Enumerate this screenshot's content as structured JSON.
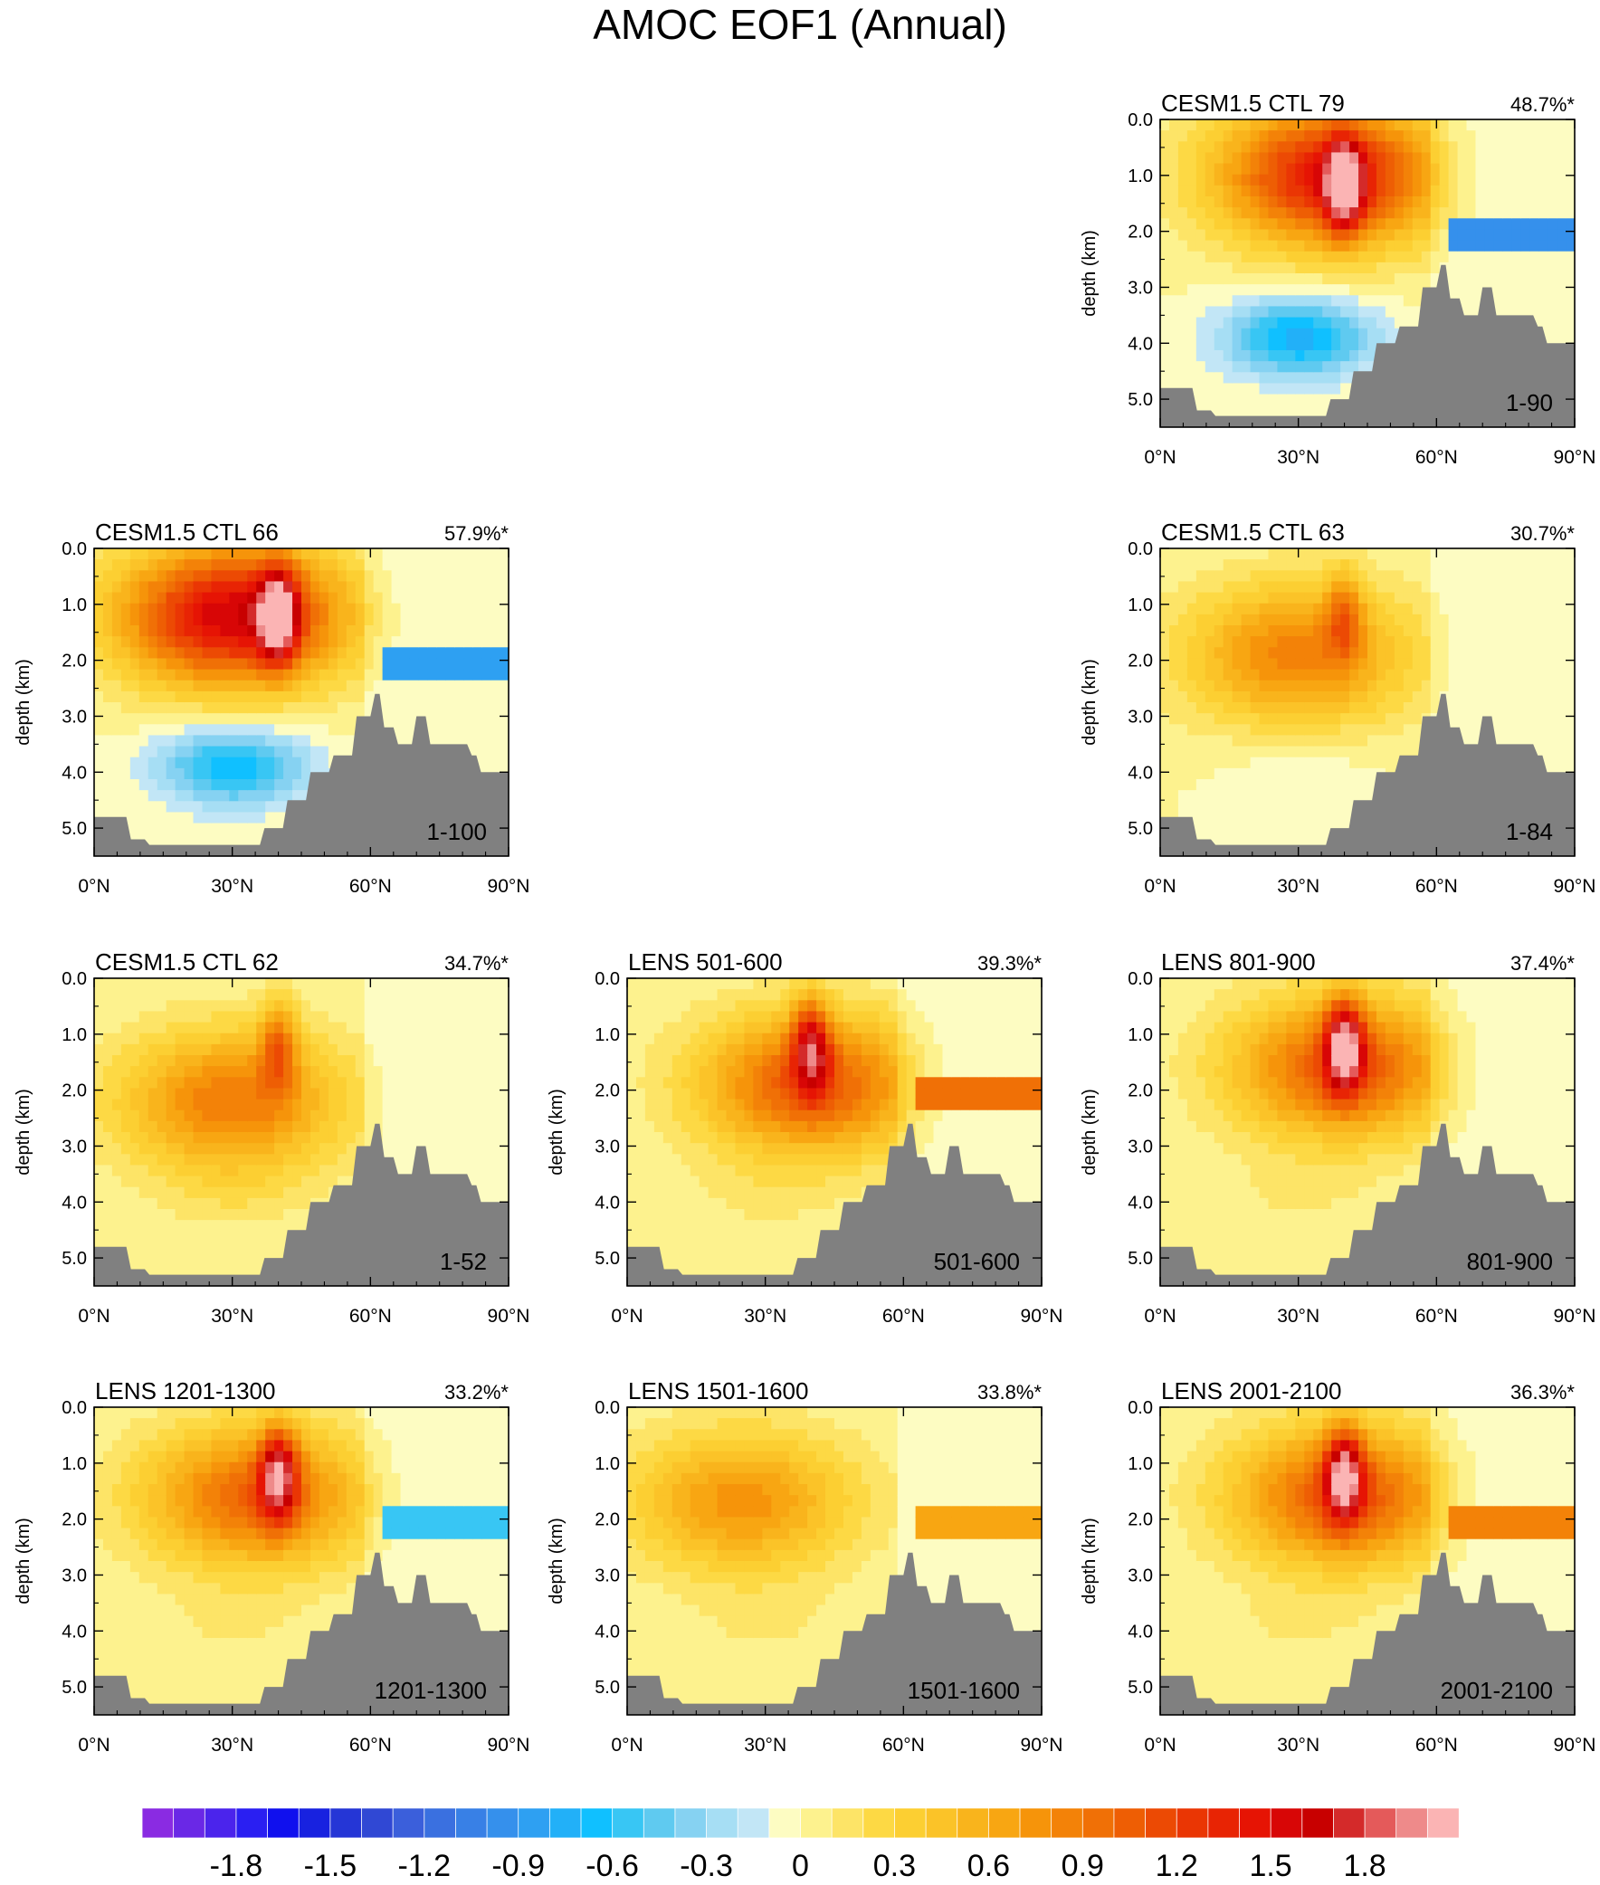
{
  "chart_data": {
    "type": "heatmap",
    "title": "AMOC EOF1 (Annual)",
    "ylabel": "depth (km)",
    "x_ticks": [
      "0°N",
      "30°N",
      "60°N",
      "90°N"
    ],
    "y_ticks": [
      "0.0",
      "1.0",
      "2.0",
      "3.0",
      "4.0",
      "5.0"
    ],
    "xlim": [
      0,
      90
    ],
    "ylim": [
      5.5,
      0
    ],
    "panels": [
      {
        "label": "CESM1.5 CTL 79",
        "variance": "48.7%*",
        "years": "1-90",
        "row": 0,
        "col": 2,
        "cx": 37,
        "cz": 1.0,
        "amp": 1.45,
        "bottom_amp": -0.75,
        "spike": 1.3,
        "shelf": -1.0
      },
      {
        "label": "CESM1.5 CTL 66",
        "variance": "57.9%*",
        "years": "1-100",
        "row": 1,
        "col": 0,
        "cx": 30,
        "cz": 1.2,
        "amp": 1.6,
        "bottom_amp": -0.7,
        "spike": 1.4,
        "shelf": -0.9
      },
      {
        "label": "CESM1.5 CTL 63",
        "variance": "30.7%*",
        "years": "1-84",
        "row": 1,
        "col": 2,
        "cx": 30,
        "cz": 1.9,
        "amp": 0.85,
        "bottom_amp": -0.1,
        "spike": 0.6,
        "shelf": 0
      },
      {
        "label": "CESM1.5 CTL 62",
        "variance": "34.7%*",
        "years": "1-52",
        "row": 2,
        "col": 0,
        "cx": 30,
        "cz": 2.2,
        "amp": 0.9,
        "bottom_amp": 0.1,
        "spike": 0.7,
        "shelf": 0
      },
      {
        "label": "LENS 501-600",
        "variance": "39.3%*",
        "years": "501-600",
        "row": 2,
        "col": 1,
        "cx": 40,
        "cz": 1.9,
        "amp": 1.1,
        "bottom_amp": 0.1,
        "spike": 1.1,
        "shelf": 0.9
      },
      {
        "label": "LENS 801-900",
        "variance": "37.4%*",
        "years": "801-900",
        "row": 2,
        "col": 2,
        "cx": 40,
        "cz": 1.6,
        "amp": 1.1,
        "bottom_amp": 0.1,
        "spike": 1.4,
        "shelf": 0
      },
      {
        "label": "LENS 1201-1300",
        "variance": "33.2%*",
        "years": "1201-1300",
        "row": 3,
        "col": 0,
        "cx": 35,
        "cz": 1.6,
        "amp": 1.0,
        "bottom_amp": 0.1,
        "spike": 1.3,
        "shelf": -0.6
      },
      {
        "label": "LENS 1501-1600",
        "variance": "33.8%*",
        "years": "1501-1600",
        "row": 3,
        "col": 1,
        "cx": 25,
        "cz": 1.7,
        "amp": 0.75,
        "bottom_amp": 0.1,
        "spike": 0,
        "shelf": 0.6
      },
      {
        "label": "LENS 2001-2100",
        "variance": "36.3%*",
        "years": "2001-2100",
        "row": 3,
        "col": 2,
        "cx": 40,
        "cz": 1.6,
        "amp": 1.1,
        "bottom_amp": 0.1,
        "spike": 1.3,
        "shelf": 0.8
      }
    ],
    "colorbar": {
      "levels_min": -2.1,
      "levels_step": 0.1,
      "n_colors": 42,
      "tick_labels": [
        "-1.8",
        "-1.5",
        "-1.2",
        "-0.9",
        "-0.6",
        "-0.3",
        "0",
        "0.3",
        "0.6",
        "0.9",
        "1.2",
        "1.5",
        "1.8"
      ],
      "tick_values": [
        -1.8,
        -1.5,
        -1.2,
        -0.9,
        -0.6,
        -0.3,
        0,
        0.3,
        0.6,
        0.9,
        1.2,
        1.5,
        1.8
      ],
      "colors": [
        "#8a2be2",
        "#6a28e6",
        "#4b24ec",
        "#2a1ff2",
        "#1010ee",
        "#1822e0",
        "#2536d6",
        "#3048d4",
        "#3b5fdb",
        "#3a70e0",
        "#3880e6",
        "#3590ec",
        "#2ea0f2",
        "#22b0f8",
        "#10c0ff",
        "#38c6f4",
        "#5fcaf0",
        "#86d2f2",
        "#a6def4",
        "#c2e6f6",
        "#fdfcc2",
        "#fdf28e",
        "#fde467",
        "#fdd944",
        "#fccf32",
        "#fbc328",
        "#f9b41c",
        "#f8a612",
        "#f6940a",
        "#f38208",
        "#f07006",
        "#ee5e04",
        "#ec4a04",
        "#ea3604",
        "#e82404",
        "#e61404",
        "#d80606",
        "#c80000",
        "#d42a2a",
        "#e45a5a",
        "#ee8a8a",
        "#fbb4b4"
      ]
    }
  }
}
